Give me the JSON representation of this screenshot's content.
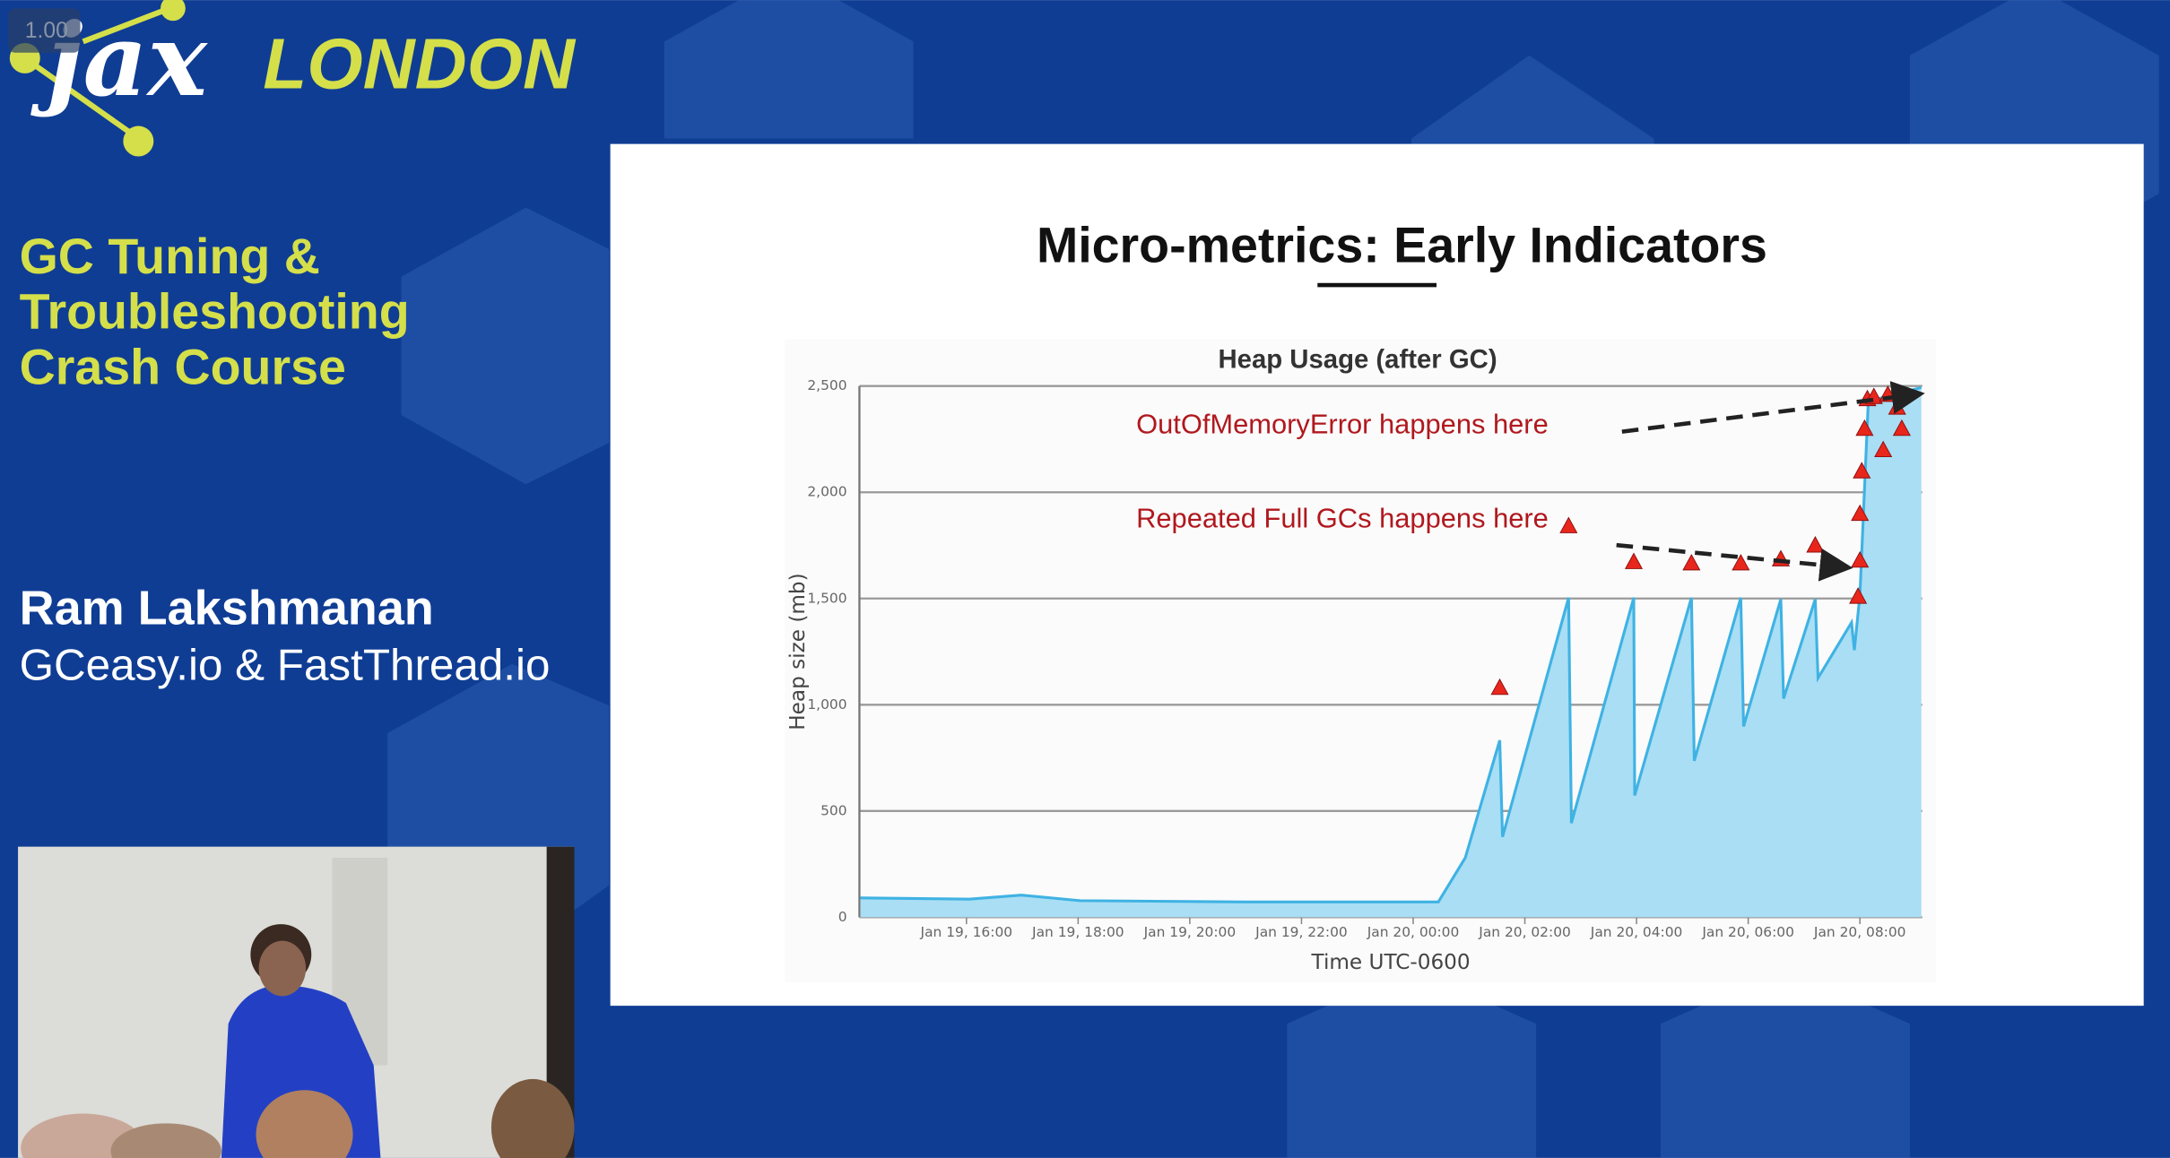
{
  "overlay": {
    "speed": "1.00"
  },
  "branding": {
    "logo": "jax",
    "city": "LONDON"
  },
  "sidebar": {
    "talk_title": [
      "GC Tuning &",
      "Troubleshooting",
      "Crash Course"
    ],
    "speaker": "Ram Lakshmanan",
    "affiliation": "GCeasy.io & FastThread.io"
  },
  "slide": {
    "title": "Micro-metrics: Early Indicators"
  },
  "chart_data": {
    "type": "area",
    "title": "Heap Usage (after GC)",
    "x_label": "Time UTC-0600",
    "y_label": "Heap size (mb)",
    "color": "#3fb2e3",
    "fill_color": "#a9def4",
    "marker_color": "#e8261c",
    "grid": true,
    "annotations": [
      "OutOfMemoryError happens here",
      "Repeated Full GCs happens here"
    ],
    "x": [
      "Jan 19, 14:06",
      "Jan 19, 16:03",
      "Jan 19, 16:59",
      "Jan 19, 18:02",
      "Jan 19, 20:59",
      "Jan 20, 00:27",
      "Jan 20, 00:56",
      "Jan 20, 01:33",
      "Jan 20, 01:36",
      "Jan 20, 02:47",
      "Jan 20, 02:50",
      "Jan 20, 03:57",
      "Jan 20, 03:58",
      "Jan 20, 04:59",
      "Jan 20, 05:02",
      "Jan 20, 05:52",
      "Jan 20, 05:55",
      "Jan 20, 06:35",
      "Jan 20, 06:38",
      "Jan 20, 07:12",
      "Jan 20, 07:15",
      "Jan 20, 07:51",
      "Jan 20, 07:54",
      "Jan 20, 08:00",
      "Jan 20, 08:09",
      "Jan 20, 09:06"
    ],
    "values": [
      91,
      85,
      104,
      78,
      72,
      72,
      280,
      833,
      378,
      1504,
      443,
      1504,
      573,
      1504,
      736,
      1504,
      898,
      1497,
      1029,
      1497,
      1126,
      1387,
      1257,
      1517,
      2428,
      2493
    ],
    "markers": {
      "x": [
        "Jan 20, 01:33",
        "Jan 20, 02:47",
        "Jan 20, 03:57",
        "Jan 20, 04:59",
        "Jan 20, 05:52",
        "Jan 20, 06:35",
        "Jan 20, 07:12",
        "Jan 20, 07:58",
        "Jan 20, 08:00",
        "Jan 20, 08:00",
        "Jan 20, 08:02",
        "Jan 20, 08:05",
        "Jan 20, 08:08",
        "Jan 20, 08:15",
        "Jan 20, 08:25",
        "Jan 20, 08:30",
        "Jan 20, 08:40",
        "Jan 20, 08:45"
      ],
      "values": [
        1081,
        1842,
        1673,
        1667,
        1667,
        1686,
        1751,
        1510,
        1680,
        1900,
        2100,
        2300,
        2440,
        2450,
        2200,
        2460,
        2400,
        2300
      ]
    },
    "xlim": [
      "Jan 19, 14:05",
      "Jan 20, 09:07"
    ],
    "xticks": [
      "Jan 19, 16:00",
      "Jan 19, 18:00",
      "Jan 19, 20:00",
      "Jan 19, 22:00",
      "Jan 20, 00:00",
      "Jan 20, 02:00",
      "Jan 20, 04:00",
      "Jan 20, 06:00",
      "Jan 20, 08:00"
    ],
    "ylim": [
      0,
      2500
    ],
    "yticks": [
      0,
      500,
      {
        "value": 1000,
        "label": "1,000"
      },
      {
        "value": 1500,
        "label": "1,500"
      },
      {
        "value": 2000,
        "label": "2,000"
      },
      {
        "value": 2500,
        "label": "2,500"
      }
    ]
  }
}
